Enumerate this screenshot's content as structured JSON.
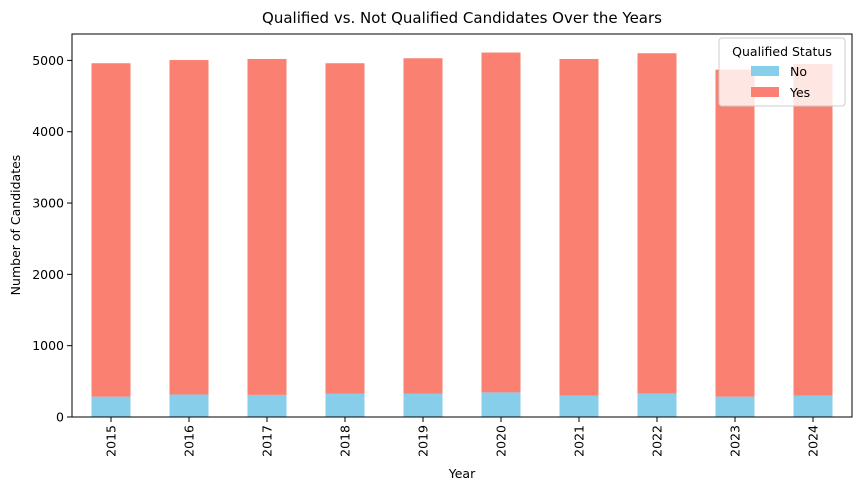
{
  "chart_data": {
    "type": "bar",
    "stacked": true,
    "title": "Qualified vs. Not Qualified Candidates Over the Years",
    "xlabel": "Year",
    "ylabel": "Number of Candidates",
    "categories": [
      "2015",
      "2016",
      "2017",
      "2018",
      "2019",
      "2020",
      "2021",
      "2022",
      "2023",
      "2024"
    ],
    "series": [
      {
        "name": "No",
        "color": "#87ceeb",
        "values": [
          285,
          315,
          310,
          325,
          325,
          345,
          300,
          330,
          285,
          300
        ]
      },
      {
        "name": "Yes",
        "color": "#fa8072",
        "values": [
          4675,
          4690,
          4710,
          4635,
          4705,
          4765,
          4720,
          4770,
          4585,
          4650
        ]
      }
    ],
    "yticks": [
      0,
      1000,
      2000,
      3000,
      4000,
      5000
    ],
    "ylim": [
      0,
      5370
    ],
    "legend": {
      "title": "Qualified Status",
      "position": "top-right"
    },
    "grid": false
  }
}
